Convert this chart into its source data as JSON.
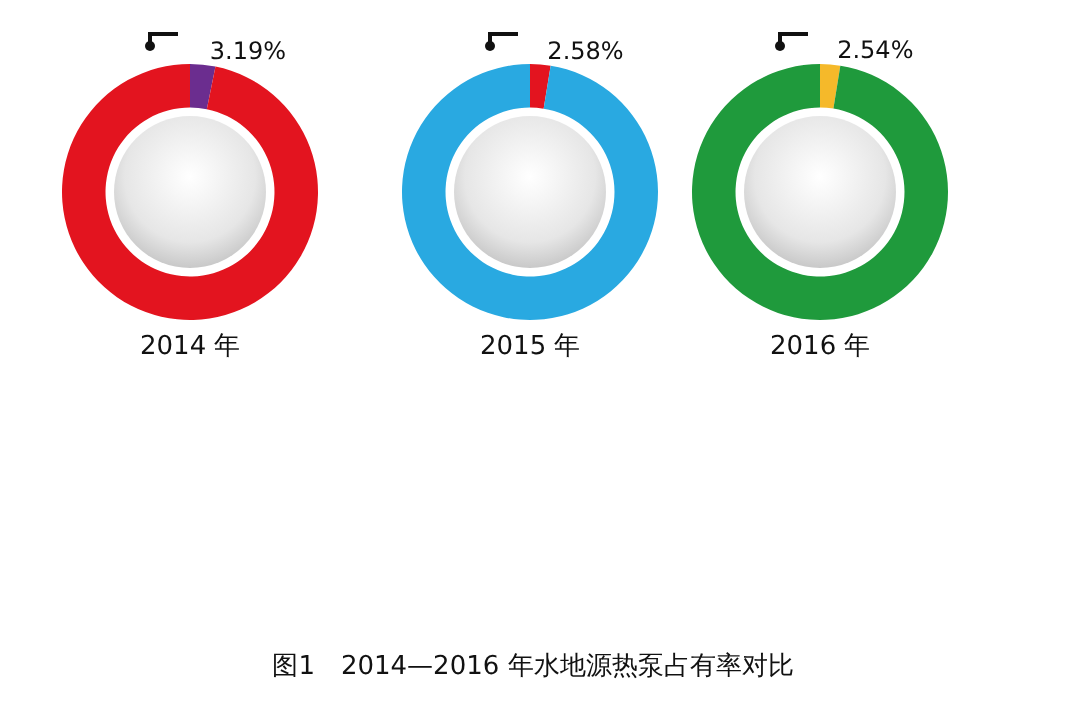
{
  "chart_data": [
    {
      "type": "donut",
      "title": "2014 年",
      "categories": [
        null,
        null
      ],
      "values": [
        3.19,
        96.81
      ],
      "colors": [
        "#6b2d8f",
        "#e3141f"
      ],
      "value_labels": [
        "3.19%",
        null
      ],
      "annotations": [
        "图1　2014—2016 年水地源热泵占有率对比"
      ]
    },
    {
      "type": "donut",
      "title": "2015 年",
      "categories": [
        null,
        null
      ],
      "values": [
        2.58,
        97.42
      ],
      "colors": [
        "#e3141f",
        "#29a9e1"
      ],
      "value_labels": [
        "2.58%",
        null
      ]
    },
    {
      "type": "donut",
      "title": "2016 年",
      "categories": [
        null,
        null
      ],
      "values": [
        2.54,
        97.46
      ],
      "colors": [
        "#f5b92a",
        "#1f9a3c"
      ],
      "value_labels": [
        "2.54%",
        null
      ]
    }
  ]
}
